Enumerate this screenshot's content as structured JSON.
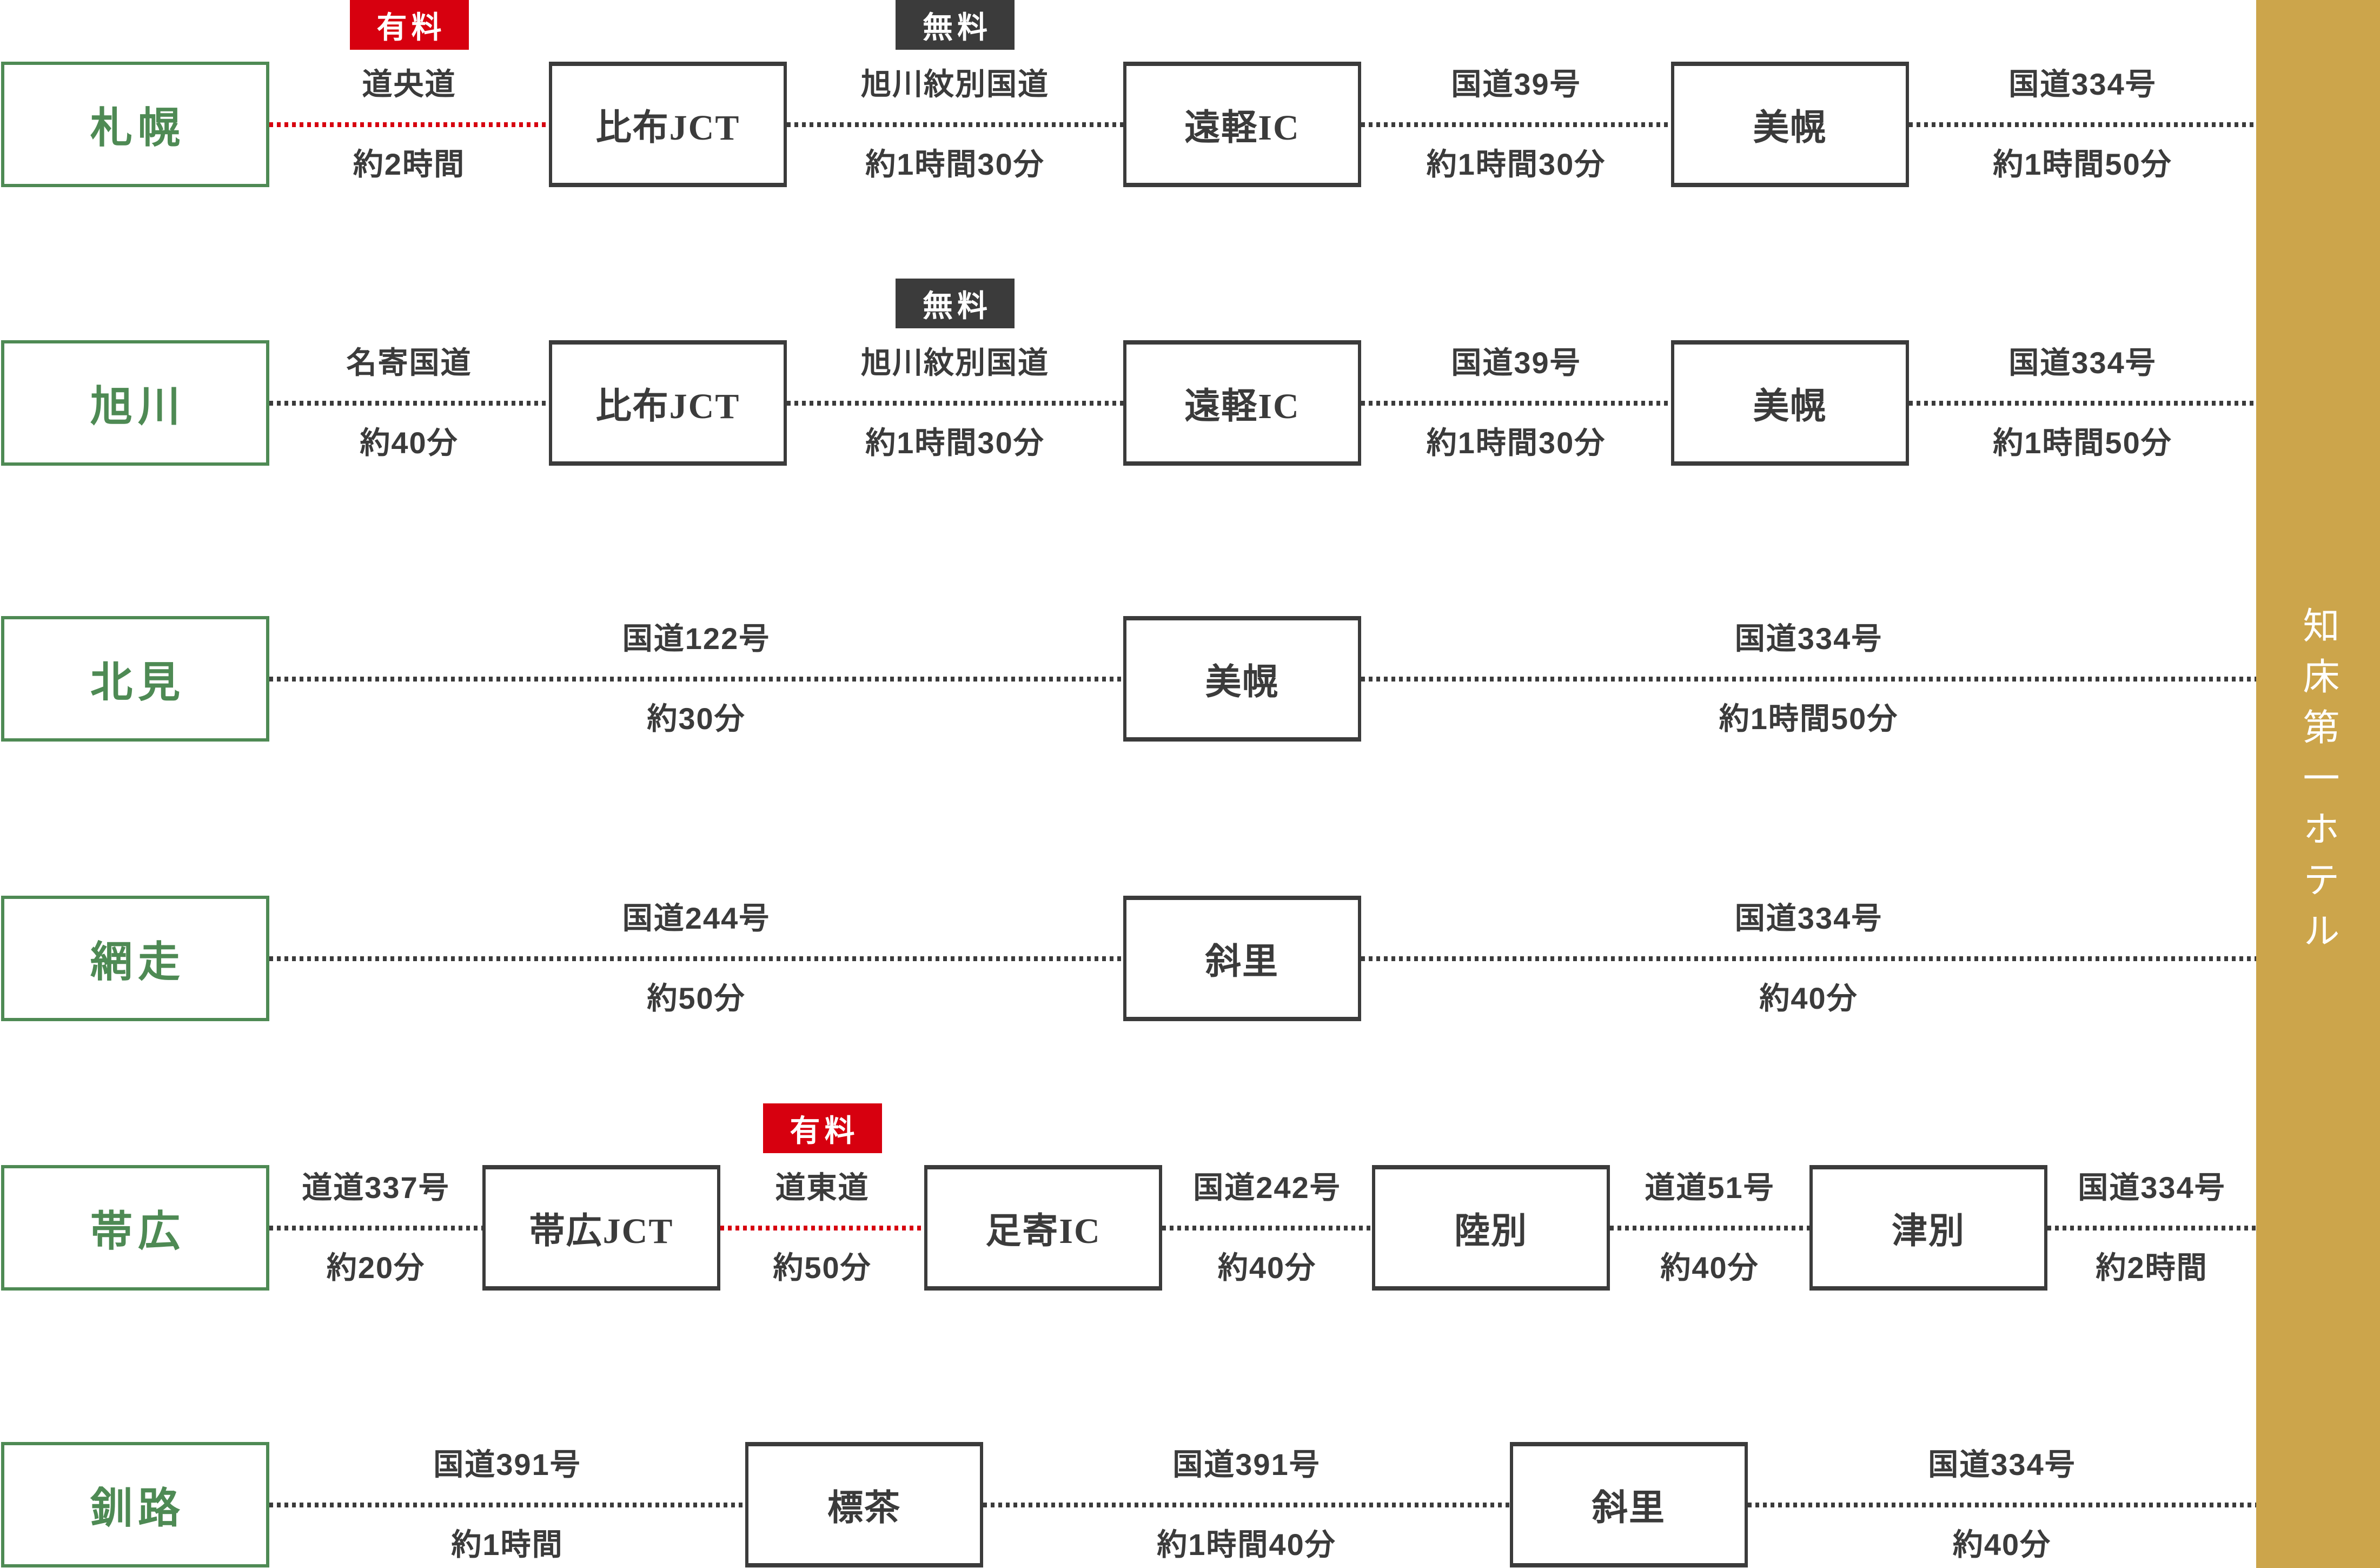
{
  "colors": {
    "green": "#4E8A54",
    "dark": "#3B3B3B",
    "red": "#D7000F",
    "gold": "#CCA54B",
    "white": "#FFFFFF",
    "background": "#FFFFFF"
  },
  "hotel": {
    "name": "知床第一ホテル"
  },
  "badges": {
    "paid": "有料",
    "free": "無料"
  },
  "rows": [
    {
      "city": "札幌",
      "items": [
        {
          "type": "seg",
          "route": "道央道",
          "time": "約2時間",
          "line": "red",
          "badge": "paid"
        },
        {
          "type": "node",
          "label": "比布JCT"
        },
        {
          "type": "seg",
          "route": "旭川紋別国道",
          "time": "約1時間30分",
          "line": "dark",
          "badge": "free"
        },
        {
          "type": "node",
          "label": "遠軽IC"
        },
        {
          "type": "seg",
          "route": "国道39号",
          "time": "約1時間30分",
          "line": "dark"
        },
        {
          "type": "node",
          "label": "美幌"
        },
        {
          "type": "seg",
          "route": "国道334号",
          "time": "約1時間50分",
          "line": "dark"
        }
      ]
    },
    {
      "city": "旭川",
      "items": [
        {
          "type": "seg",
          "route": "名寄国道",
          "time": "約40分",
          "line": "dark"
        },
        {
          "type": "node",
          "label": "比布JCT"
        },
        {
          "type": "seg",
          "route": "旭川紋別国道",
          "time": "約1時間30分",
          "line": "dark",
          "badge": "free"
        },
        {
          "type": "node",
          "label": "遠軽IC"
        },
        {
          "type": "seg",
          "route": "国道39号",
          "time": "約1時間30分",
          "line": "dark"
        },
        {
          "type": "node",
          "label": "美幌"
        },
        {
          "type": "seg",
          "route": "国道334号",
          "time": "約1時間50分",
          "line": "dark"
        }
      ]
    },
    {
      "city": "北見",
      "items": [
        {
          "type": "seg",
          "route": "国道122号",
          "time": "約30分",
          "line": "dark"
        },
        {
          "type": "node",
          "label": "美幌"
        },
        {
          "type": "seg",
          "route": "国道334号",
          "time": "約1時間50分",
          "line": "dark"
        }
      ]
    },
    {
      "city": "網走",
      "items": [
        {
          "type": "seg",
          "route": "国道244号",
          "time": "約50分",
          "line": "dark"
        },
        {
          "type": "node",
          "label": "斜里"
        },
        {
          "type": "seg",
          "route": "国道334号",
          "time": "約40分",
          "line": "dark"
        }
      ]
    },
    {
      "city": "帯広",
      "items": [
        {
          "type": "seg",
          "route": "道道337号",
          "time": "約20分",
          "line": "dark"
        },
        {
          "type": "node",
          "label": "帯広JCT"
        },
        {
          "type": "seg",
          "route": "道東道",
          "time": "約50分",
          "line": "red",
          "badge": "paid"
        },
        {
          "type": "node",
          "label": "足寄IC"
        },
        {
          "type": "seg",
          "route": "国道242号",
          "time": "約40分",
          "line": "dark"
        },
        {
          "type": "node",
          "label": "陸別"
        },
        {
          "type": "seg",
          "route": "道道51号",
          "time": "約40分",
          "line": "dark"
        },
        {
          "type": "node",
          "label": "津別"
        },
        {
          "type": "seg",
          "route": "国道334号",
          "time": "約2時間",
          "line": "dark"
        }
      ]
    },
    {
      "city": "釧路",
      "items": [
        {
          "type": "seg",
          "route": "国道391号",
          "time": "約1時間",
          "line": "dark"
        },
        {
          "type": "node",
          "label": "標茶"
        },
        {
          "type": "seg",
          "route": "国道391号",
          "time": "約1時間40分",
          "line": "dark"
        },
        {
          "type": "node",
          "label": "斜里"
        },
        {
          "type": "seg",
          "route": "国道334号",
          "time": "約40分",
          "line": "dark"
        }
      ]
    }
  ]
}
